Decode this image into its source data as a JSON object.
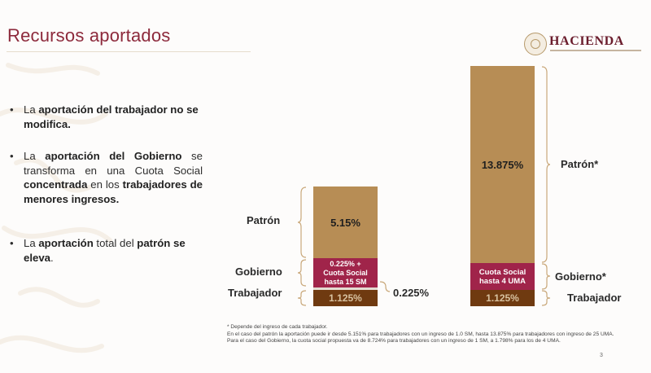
{
  "title": "Recursos aportados",
  "logo": "HACIENDA",
  "bullets": [
    {
      "a": "La ",
      "b": "aportación del trabajador no se modifica."
    },
    {
      "a": "La ",
      "b": "aportación del Gobierno",
      "c": " se transforma en una Cuota Social ",
      "d": "concentrada",
      "e": " en los ",
      "f": "trabajadores de menores ingresos."
    },
    {
      "a": "La ",
      "b": "aportación",
      "c": " total del ",
      "d": "patrón se eleva",
      "e": "."
    }
  ],
  "chart_data": {
    "type": "bar",
    "stacked": true,
    "bars": [
      {
        "segments": [
          {
            "name": "Patrón",
            "value": 5.15,
            "value_label": "5.15%"
          },
          {
            "name": "Gobierno",
            "value": 0.225,
            "value_label": "0.225% +\nCuota Social\nhasta 15 SM"
          },
          {
            "name": "Trabajador",
            "value": 1.125,
            "value_label": "1.125%"
          }
        ],
        "gap_label": "0.225%"
      },
      {
        "segments": [
          {
            "name": "Patrón*",
            "value": 13.875,
            "value_label": "13.875%"
          },
          {
            "name": "Gobierno*",
            "value_label": "Cuota Social\nhasta 4 UMA"
          },
          {
            "name": "Trabajador",
            "value": 1.125,
            "value_label": "1.125%"
          }
        ]
      }
    ],
    "colors": {
      "patron": "#b78d55",
      "gobierno": "#a0244a",
      "trabajador": "#6f3a10"
    }
  },
  "footnotes": [
    "* Depende del ingreso de cada trabajador.",
    "En el caso del patrón la aportación puede ir desde 5.151% para trabajadores con un ingreso de 1.0 SM, hasta 13.875% para trabajadores con ingreso de 25 UMA.",
    "Para el caso del Gobierno, la cuota social propuesta va de 8.724% para trabajadores con un ingreso de 1 SM, a 1.798% para los de 4 UMA."
  ],
  "page_number": "3"
}
